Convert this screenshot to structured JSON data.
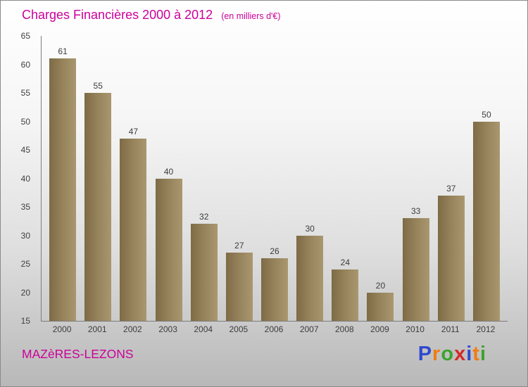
{
  "header": {
    "title": "Charges Financières 2000 à 2012",
    "subtitle": "(en milliers d'€)"
  },
  "footer": {
    "entity": "MAZèRES-LEZONS",
    "logo_letters": [
      {
        "char": "P",
        "color": "#2f49cf"
      },
      {
        "char": "r",
        "color": "#f07c12"
      },
      {
        "char": "o",
        "color": "#3da32e"
      },
      {
        "char": "x",
        "color": "#d42a2a"
      },
      {
        "char": "i",
        "color": "#2f49cf"
      },
      {
        "char": "t",
        "color": "#f07c12"
      },
      {
        "char": "i",
        "color": "#3da32e"
      }
    ]
  },
  "colors": {
    "accent": "#cc0099",
    "bar_dark": "#7e6b45",
    "bar_light": "#a9976f",
    "label": "#3c3c3c"
  },
  "chart_data": {
    "type": "bar",
    "title": "Charges Financières 2000 à 2012",
    "subtitle": "(en milliers d'€)",
    "categories": [
      "2000",
      "2001",
      "2002",
      "2003",
      "2004",
      "2005",
      "2006",
      "2007",
      "2008",
      "2009",
      "2010",
      "2011",
      "2012"
    ],
    "values": [
      61,
      55,
      47,
      40,
      32,
      27,
      26,
      30,
      24,
      20,
      33,
      37,
      50
    ],
    "xlabel": "",
    "ylabel": "",
    "ylim": [
      15,
      65
    ],
    "yticks": [
      15,
      20,
      25,
      30,
      35,
      40,
      45,
      50,
      55,
      60,
      65
    ],
    "grid": false,
    "legend": false
  }
}
